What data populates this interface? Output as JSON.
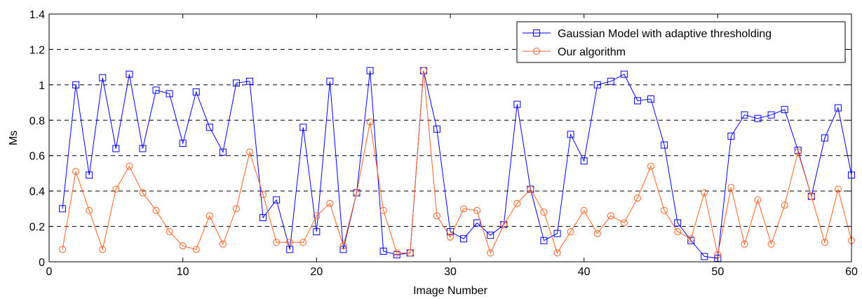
{
  "chart_data": {
    "type": "line",
    "xlabel": "Image Number",
    "ylabel": "Ms",
    "xlim": [
      0,
      60
    ],
    "ylim": [
      0,
      1.4
    ],
    "xticks": [
      0,
      10,
      20,
      30,
      40,
      50,
      60
    ],
    "yticks": [
      0,
      0.2,
      0.4,
      0.6,
      0.8,
      1,
      1.2,
      1.4
    ],
    "xtick_labels": [
      "0",
      "10",
      "20",
      "30",
      "40",
      "50",
      "60"
    ],
    "ytick_labels": [
      "0",
      "0.2",
      "0.4",
      "0.6",
      "0.8",
      "1",
      "1.2",
      "1.4"
    ],
    "grid": "horizontal dashed",
    "legend_position": "top-right",
    "x": [
      1,
      2,
      3,
      4,
      5,
      6,
      7,
      8,
      9,
      10,
      11,
      12,
      13,
      14,
      15,
      16,
      17,
      18,
      19,
      20,
      21,
      22,
      23,
      24,
      25,
      26,
      27,
      28,
      29,
      30,
      31,
      32,
      33,
      34,
      35,
      36,
      37,
      38,
      39,
      40,
      41,
      42,
      43,
      44,
      45,
      46,
      47,
      48,
      49,
      50,
      51,
      52,
      53,
      54,
      55,
      56,
      57,
      58,
      59,
      60
    ],
    "series": [
      {
        "name": "Gaussian Model with adaptive thresholding",
        "color": "#0000ff",
        "marker": "square",
        "values": [
          0.3,
          1.0,
          0.49,
          1.04,
          0.64,
          1.06,
          0.64,
          0.97,
          0.95,
          0.67,
          0.96,
          0.76,
          0.62,
          1.01,
          1.02,
          0.25,
          0.35,
          0.07,
          0.76,
          0.17,
          1.02,
          0.07,
          0.39,
          1.08,
          0.06,
          0.04,
          0.05,
          1.08,
          0.75,
          0.17,
          0.13,
          0.22,
          0.15,
          0.21,
          0.89,
          0.41,
          0.12,
          0.16,
          0.72,
          0.57,
          1.0,
          1.02,
          1.06,
          0.91,
          0.92,
          0.66,
          0.22,
          0.12,
          0.03,
          0.02,
          0.71,
          0.83,
          0.81,
          0.83,
          0.86,
          0.63,
          0.37,
          0.7,
          0.87,
          0.49
        ]
      },
      {
        "name": "Our algorithm",
        "color": "#ff6020",
        "marker": "circle",
        "values": [
          0.07,
          0.51,
          0.29,
          0.07,
          0.41,
          0.54,
          0.39,
          0.29,
          0.17,
          0.09,
          0.07,
          0.26,
          0.1,
          0.3,
          0.62,
          0.38,
          0.11,
          0.11,
          0.11,
          0.26,
          0.33,
          0.09,
          0.39,
          0.79,
          0.29,
          0.05,
          0.05,
          1.08,
          0.26,
          0.14,
          0.3,
          0.29,
          0.05,
          0.21,
          0.33,
          0.41,
          0.28,
          0.05,
          0.17,
          0.29,
          0.16,
          0.26,
          0.22,
          0.36,
          0.54,
          0.29,
          0.17,
          0.13,
          0.39,
          0.04,
          0.42,
          0.1,
          0.35,
          0.1,
          0.32,
          0.62,
          0.37,
          0.11,
          0.41,
          0.12
        ]
      }
    ]
  }
}
